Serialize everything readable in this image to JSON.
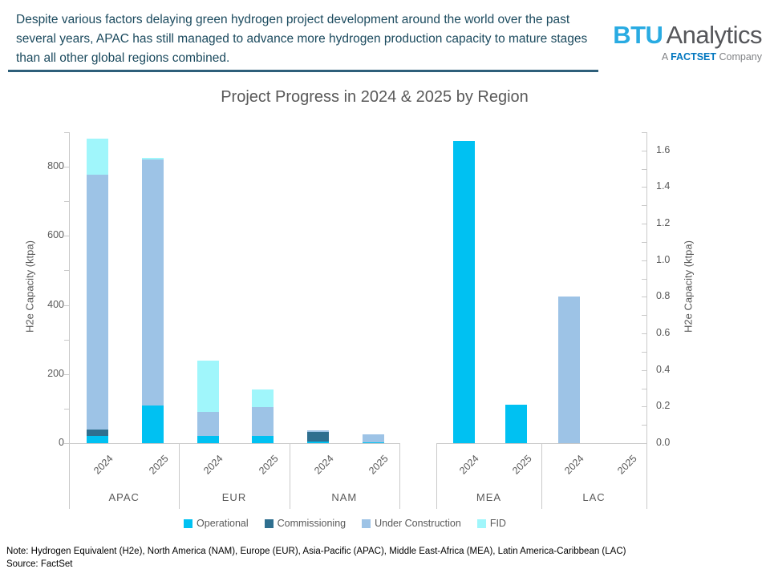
{
  "header": {
    "takeaway": "Despite various factors delaying green hydrogen project development around the world over the past several years, APAC has still managed to advance more hydrogen production capacity to mature stages than all other global regions combined."
  },
  "logo": {
    "brand_primary": "BTU",
    "brand_secondary": "Analytics",
    "tagline_prefix": "A",
    "tagline_brand": "FACTSET",
    "tagline_suffix": "Company",
    "brand_primary_color": "#29abe2",
    "brand_secondary_color": "#55565a",
    "tagline_brand_color": "#0076bf"
  },
  "chart_data": {
    "type": "bar",
    "stacked": true,
    "title": "Project Progress in 2024 & 2025 by Region",
    "legend": [
      "Operational",
      "Commissioning",
      "Under Construction",
      "FID"
    ],
    "legend_position": "bottom",
    "series_colors": {
      "Operational": "#00c1f2",
      "Commissioning": "#2f6f8f",
      "Under Construction": "#9dc3e6",
      "FID": "#a0f6fb"
    },
    "grid": false,
    "left_axis": {
      "label": "H2e Capacity (ktpa)",
      "tick_values": [
        0,
        200,
        400,
        600,
        800
      ],
      "tick_labels": [
        "0",
        "200",
        "400",
        "600",
        "800"
      ],
      "minor_step": 100,
      "max": 900
    },
    "right_axis": {
      "label": "H2e Capacity (ktpa)",
      "tick_values": [
        0,
        0.2,
        0.4,
        0.6,
        0.8,
        1.0,
        1.2,
        1.4,
        1.6
      ],
      "tick_labels": [
        "0.0",
        "0.2",
        "0.4",
        "0.6",
        "0.8",
        "1.0",
        "1.2",
        "1.4",
        "1.6"
      ],
      "minor_step": 0.1,
      "max": 1.7
    },
    "panels": [
      {
        "axis": "left",
        "groups": [
          {
            "region": "APAC",
            "bars": [
              {
                "year": "2024",
                "segments": {
                  "Operational": 20,
                  "Commissioning": 20,
                  "Under Construction": 738,
                  "FID": 104
                }
              },
              {
                "year": "2025",
                "segments": {
                  "Operational": 110,
                  "Commissioning": 0,
                  "Under Construction": 710,
                  "FID": 5
                }
              }
            ]
          },
          {
            "region": "EUR",
            "bars": [
              {
                "year": "2024",
                "segments": {
                  "Operational": 22,
                  "Commissioning": 0,
                  "Under Construction": 68,
                  "FID": 148
                }
              },
              {
                "year": "2025",
                "segments": {
                  "Operational": 20,
                  "Commissioning": 0,
                  "Under Construction": 85,
                  "FID": 50
                }
              }
            ]
          },
          {
            "region": "NAM",
            "bars": [
              {
                "year": "2024",
                "segments": {
                  "Operational": 5,
                  "Commissioning": 27,
                  "Under Construction": 5,
                  "FID": 0
                }
              },
              {
                "year": "2025",
                "segments": {
                  "Operational": 3,
                  "Commissioning": 0,
                  "Under Construction": 22,
                  "FID": 0
                }
              }
            ]
          }
        ]
      },
      {
        "axis": "right",
        "groups": [
          {
            "region": "MEA",
            "bars": [
              {
                "year": "2024",
                "segments": {
                  "Operational": 1.65,
                  "Commissioning": 0,
                  "Under Construction": 0,
                  "FID": 0
                }
              },
              {
                "year": "2025",
                "segments": {
                  "Operational": 0.21,
                  "Commissioning": 0,
                  "Under Construction": 0,
                  "FID": 0
                }
              }
            ]
          },
          {
            "region": "LAC",
            "bars": [
              {
                "year": "2024",
                "segments": {
                  "Operational": 0,
                  "Commissioning": 0,
                  "Under Construction": 0.8,
                  "FID": 0
                }
              },
              {
                "year": "2025",
                "segments": {
                  "Operational": 0,
                  "Commissioning": 0,
                  "Under Construction": 0,
                  "FID": 0
                }
              }
            ]
          }
        ]
      }
    ]
  },
  "footer": {
    "note": "Note: Hydrogen Equivalent (H2e), North America (NAM), Europe (EUR), Asia-Pacific (APAC), Middle East-Africa (MEA), Latin America-Caribbean (LAC)",
    "source": "Source: FactSet"
  }
}
